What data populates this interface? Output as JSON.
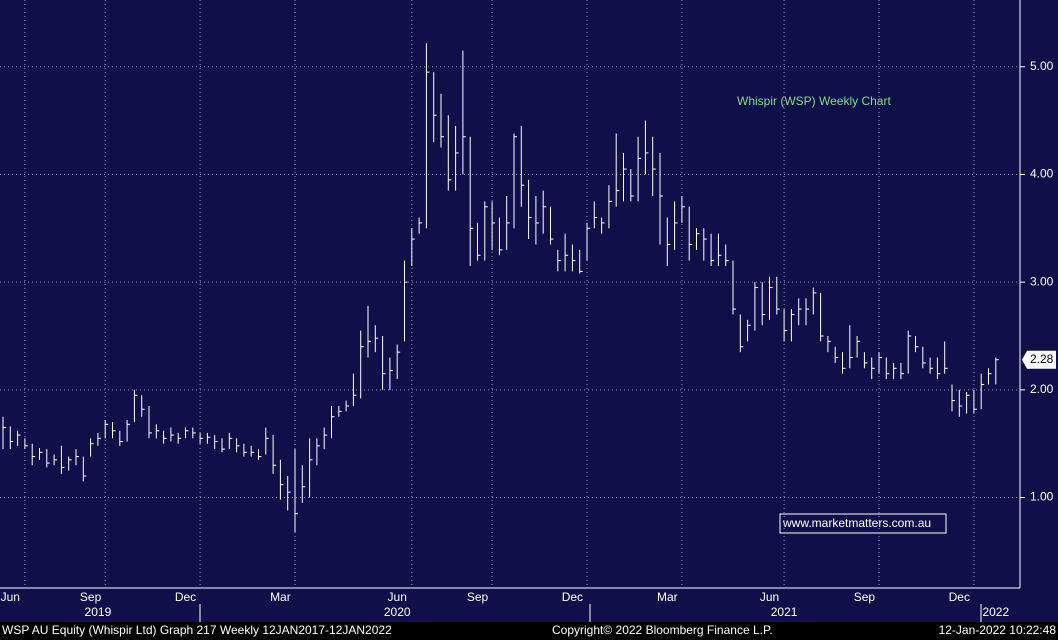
{
  "chart_data": {
    "type": "hlc",
    "color": "#ffffff",
    "grid": true,
    "ylim": [
      0.16,
      5.62
    ],
    "yticks": [
      {
        "value": 1,
        "label": "1.00"
      },
      {
        "value": 2,
        "label": "2.00"
      },
      {
        "value": 3,
        "label": "3.00"
      },
      {
        "value": 4,
        "label": "4.00"
      },
      {
        "value": 5,
        "label": "5.00"
      }
    ],
    "last_label": "2.28",
    "annotations": [
      "Whispir (WSP) Weekly Chart",
      "www.marketmatters.com.au"
    ],
    "footer": [
      "WSP AU Equity (Whispir Ltd) Graph 217  Weekly 12JAN2017-12JAN2022",
      "Copyright© 2022 Bloomberg Finance L.P.",
      "12-Jan-2022 10:22:48"
    ],
    "categories": [
      null,
      "Jun",
      null,
      null,
      null,
      null,
      null,
      null,
      null,
      null,
      null,
      null,
      "Sep",
      null,
      null,
      null,
      null,
      null,
      null,
      null,
      null,
      null,
      null,
      null,
      null,
      "Dec",
      null,
      null,
      null,
      null,
      null,
      null,
      null,
      null,
      null,
      null,
      null,
      null,
      "Mar",
      null,
      null,
      null,
      null,
      null,
      null,
      null,
      null,
      null,
      null,
      null,
      null,
      null,
      null,
      null,
      "Jun",
      null,
      null,
      null,
      null,
      null,
      null,
      null,
      null,
      null,
      null,
      "Sep",
      null,
      null,
      null,
      null,
      null,
      null,
      null,
      null,
      null,
      null,
      null,
      null,
      "Dec",
      null,
      null,
      null,
      null,
      null,
      null,
      null,
      null,
      null,
      null,
      null,
      null,
      "Mar",
      null,
      null,
      null,
      null,
      null,
      null,
      null,
      null,
      null,
      null,
      null,
      null,
      null,
      "Jun",
      null,
      null,
      null,
      null,
      null,
      null,
      null,
      null,
      null,
      null,
      null,
      null,
      "Sep",
      null,
      null,
      null,
      null,
      null,
      null,
      null,
      null,
      null,
      null,
      null,
      null,
      "Dec",
      null,
      null,
      null,
      null,
      null
    ],
    "years": [
      null,
      null,
      null,
      null,
      null,
      null,
      null,
      null,
      null,
      null,
      null,
      null,
      null,
      "2019",
      null,
      null,
      null,
      null,
      null,
      null,
      null,
      null,
      null,
      null,
      null,
      null,
      null,
      null,
      null,
      null,
      null,
      null,
      null,
      null,
      null,
      null,
      null,
      null,
      null,
      null,
      null,
      null,
      null,
      null,
      null,
      null,
      null,
      null,
      null,
      null,
      null,
      null,
      null,
      null,
      "2020",
      null,
      null,
      null,
      null,
      null,
      null,
      null,
      null,
      null,
      null,
      null,
      null,
      null,
      null,
      null,
      null,
      null,
      null,
      null,
      null,
      null,
      null,
      null,
      null,
      null,
      null,
      null,
      null,
      null,
      null,
      null,
      null,
      null,
      null,
      null,
      null,
      null,
      null,
      null,
      null,
      null,
      null,
      null,
      null,
      null,
      null,
      null,
      null,
      null,
      null,
      null,
      null,
      "2021",
      null,
      null,
      null,
      null,
      null,
      null,
      null,
      null,
      null,
      null,
      null,
      null,
      null,
      null,
      null,
      null,
      null,
      null,
      null,
      null,
      null,
      null,
      null,
      null,
      null,
      null,
      null,
      null,
      "2022"
    ],
    "high": [
      1.75,
      1.66,
      1.62,
      1.55,
      1.5,
      1.46,
      1.45,
      1.4,
      1.48,
      1.38,
      1.45,
      1.38,
      1.55,
      1.6,
      1.72,
      1.7,
      1.62,
      1.72,
      2.0,
      1.95,
      1.85,
      1.68,
      1.62,
      1.65,
      1.6,
      1.65,
      1.65,
      1.6,
      1.6,
      1.58,
      1.55,
      1.6,
      1.55,
      1.5,
      1.48,
      1.45,
      1.65,
      1.58,
      1.35,
      1.2,
      1.45,
      1.3,
      1.55,
      1.55,
      1.65,
      1.85,
      1.85,
      1.9,
      2.15,
      2.55,
      2.78,
      2.6,
      2.5,
      2.3,
      2.42,
      3.2,
      3.5,
      3.6,
      5.22,
      4.95,
      4.75,
      4.55,
      4.45,
      5.15,
      4.35,
      3.55,
      3.75,
      3.75,
      3.6,
      3.8,
      4.38,
      4.45,
      3.95,
      3.8,
      3.85,
      3.7,
      3.3,
      3.45,
      3.35,
      3.3,
      3.55,
      3.75,
      3.6,
      3.9,
      4.38,
      4.2,
      4.05,
      4.35,
      4.5,
      4.35,
      4.2,
      3.6,
      3.75,
      3.8,
      3.7,
      3.5,
      3.5,
      3.45,
      3.45,
      3.35,
      3.2,
      2.7,
      2.65,
      3.0,
      3.0,
      3.05,
      3.05,
      2.75,
      2.75,
      2.85,
      2.85,
      2.95,
      2.9,
      2.5,
      2.4,
      2.35,
      2.6,
      2.5,
      2.35,
      2.3,
      2.35,
      2.3,
      2.25,
      2.25,
      2.55,
      2.5,
      2.4,
      2.3,
      2.3,
      2.45,
      2.05,
      2.0,
      1.98,
      2.0,
      2.15,
      2.2,
      2.3
    ],
    "low": [
      1.45,
      1.45,
      1.48,
      1.45,
      1.3,
      1.35,
      1.28,
      1.3,
      1.22,
      1.25,
      1.3,
      1.15,
      1.38,
      1.48,
      1.55,
      1.55,
      1.48,
      1.52,
      1.7,
      1.75,
      1.55,
      1.55,
      1.5,
      1.52,
      1.5,
      1.55,
      1.55,
      1.5,
      1.5,
      1.45,
      1.42,
      1.45,
      1.42,
      1.38,
      1.38,
      1.35,
      1.4,
      1.22,
      0.98,
      0.88,
      0.68,
      0.95,
      1.0,
      1.3,
      1.45,
      1.55,
      1.75,
      1.8,
      1.85,
      1.92,
      2.3,
      2.35,
      2.0,
      2.0,
      2.1,
      2.45,
      3.15,
      3.45,
      3.5,
      4.3,
      4.25,
      3.85,
      3.85,
      4.0,
      3.15,
      3.2,
      3.2,
      3.3,
      3.25,
      3.3,
      3.5,
      3.7,
      3.4,
      3.35,
      3.45,
      3.35,
      3.1,
      3.1,
      3.1,
      3.08,
      3.2,
      3.5,
      3.45,
      3.5,
      3.7,
      3.75,
      3.75,
      3.75,
      4.0,
      3.8,
      3.35,
      3.15,
      3.3,
      3.55,
      3.2,
      3.3,
      3.2,
      3.15,
      3.15,
      3.15,
      2.7,
      2.35,
      2.45,
      2.55,
      2.6,
      2.65,
      2.7,
      2.45,
      2.45,
      2.6,
      2.6,
      2.7,
      2.45,
      2.35,
      2.25,
      2.15,
      2.2,
      2.3,
      2.2,
      2.1,
      2.15,
      2.1,
      2.1,
      2.1,
      2.15,
      2.35,
      2.2,
      2.15,
      2.1,
      2.15,
      1.8,
      1.75,
      1.78,
      1.78,
      1.82,
      2.05,
      2.05
    ],
    "close": [
      1.65,
      1.52,
      1.58,
      1.48,
      1.38,
      1.42,
      1.32,
      1.35,
      1.28,
      1.35,
      1.38,
      1.2,
      1.5,
      1.55,
      1.68,
      1.62,
      1.52,
      1.68,
      1.95,
      1.82,
      1.6,
      1.62,
      1.55,
      1.58,
      1.55,
      1.62,
      1.6,
      1.55,
      1.56,
      1.52,
      1.45,
      1.55,
      1.48,
      1.42,
      1.42,
      1.38,
      1.55,
      1.3,
      1.12,
      1.05,
      0.85,
      1.1,
      1.35,
      1.48,
      1.58,
      1.75,
      1.8,
      1.85,
      1.95,
      2.4,
      2.45,
      2.48,
      2.15,
      2.18,
      2.35,
      3.0,
      3.4,
      3.55,
      4.95,
      4.55,
      4.35,
      3.95,
      4.2,
      4.35,
      3.5,
      3.25,
      3.7,
      3.55,
      3.3,
      3.55,
      4.35,
      3.9,
      3.6,
      3.55,
      3.7,
      3.4,
      3.2,
      3.25,
      3.2,
      3.1,
      3.5,
      3.6,
      3.55,
      3.75,
      3.85,
      4.05,
      3.8,
      4.15,
      4.2,
      4.05,
      3.8,
      3.35,
      3.55,
      3.7,
      3.35,
      3.45,
      3.4,
      3.2,
      3.25,
      3.2,
      2.75,
      2.4,
      2.6,
      2.95,
      2.7,
      2.95,
      2.75,
      2.55,
      2.7,
      2.75,
      2.75,
      2.9,
      2.5,
      2.45,
      2.3,
      2.2,
      2.3,
      2.45,
      2.25,
      2.2,
      2.3,
      2.15,
      2.2,
      2.15,
      2.5,
      2.4,
      2.25,
      2.2,
      2.15,
      2.2,
      1.9,
      1.85,
      1.95,
      1.82,
      2.05,
      2.15,
      2.28
    ]
  }
}
